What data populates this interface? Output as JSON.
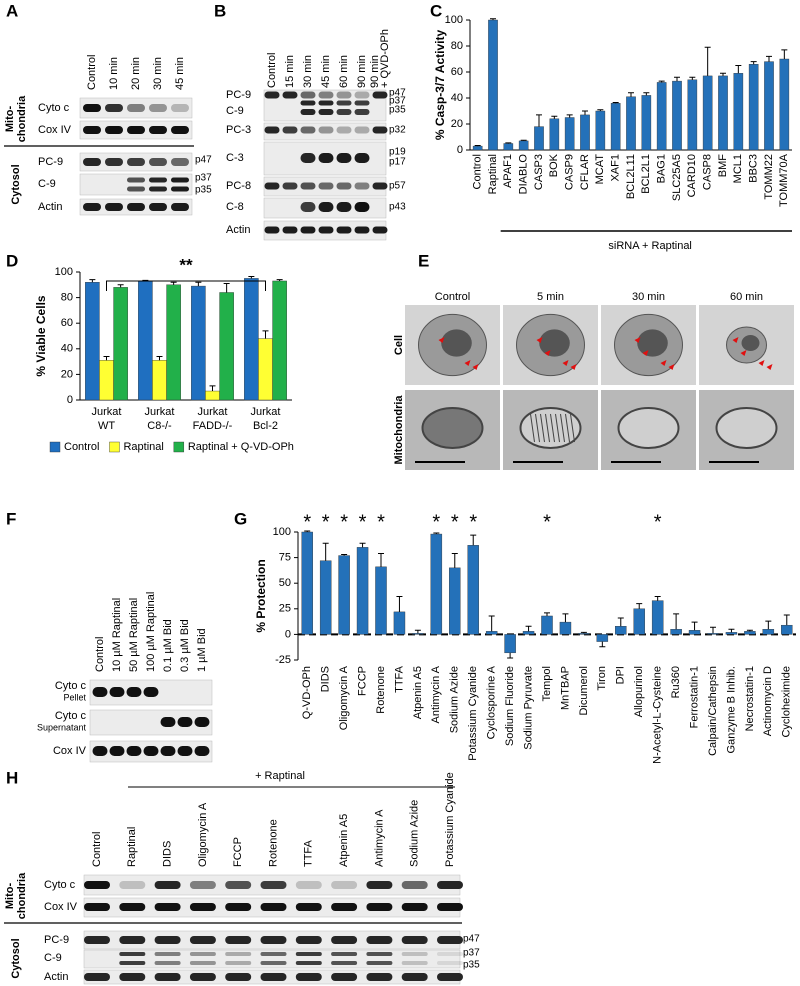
{
  "blot_A": {
    "letter": "A",
    "lanes": [
      "Control",
      "10 min",
      "20 min",
      "30 min",
      "45 min"
    ],
    "groups": [
      {
        "name": [
          "Mito-",
          "chondria"
        ],
        "rows": [
          "Cyto c",
          "Cox IV"
        ]
      },
      {
        "name": [
          "Cytosol"
        ],
        "rows": [
          "PC-9",
          "C-9",
          "Actin"
        ]
      }
    ],
    "bands": [
      "p47",
      "p37",
      "p35"
    ]
  },
  "blot_B": {
    "letter": "B",
    "lanes": [
      [
        "Control"
      ],
      [
        "15 min"
      ],
      [
        "30 min"
      ],
      [
        "45 min"
      ],
      [
        "60 min"
      ],
      [
        "90 min"
      ],
      [
        "90 min",
        "+ QVD-OPh"
      ]
    ],
    "rows": [
      "PC-9",
      "C-9",
      "PC-3",
      "C-3",
      "PC-8",
      "C-8",
      "Actin"
    ],
    "bands": [
      "p47",
      "p37",
      "p35",
      "p32",
      "p19",
      "p17",
      "p57",
      "p43"
    ]
  },
  "micrographs_E": {
    "letter": "E",
    "columns": [
      "Control",
      "5 min",
      "30 min",
      "60 min"
    ],
    "rows": [
      "Cell",
      "Mitochondria"
    ]
  },
  "blot_F": {
    "letter": "F",
    "lanes": [
      "Control",
      "10 µM Raptinal",
      "50 µM Raptinal",
      "100 µM Raptinal",
      "0.1 µM Bid",
      "0.3 µM Bid",
      "1 µM Bid"
    ],
    "rows": [
      [
        "Cyto c",
        "Pellet"
      ],
      [
        "Cyto c",
        "Supernatant"
      ],
      [
        "Cox IV"
      ]
    ]
  },
  "blot_H": {
    "letter": "H",
    "treatment": "+ Raptinal",
    "lanes": [
      "Control",
      "Raptinal",
      "DIDS",
      "Oligomycin A",
      "FCCP",
      "Rotenone",
      "TTFA",
      "Atpenin A5",
      "Antimycin A",
      "Sodium Azide",
      "Potassium Cyanide"
    ],
    "groups": [
      {
        "name": [
          "Mito-",
          "chondria"
        ],
        "rows": [
          "Cyto c",
          "Cox IV"
        ]
      },
      {
        "name": [
          "Cytosol"
        ],
        "rows": [
          "PC-9",
          "C-9",
          "Actin"
        ]
      }
    ],
    "bands": [
      "p47",
      "p37",
      "p35"
    ]
  },
  "chart_data": [
    {
      "letter": "C",
      "type": "bar",
      "ylabel": "% Casp-3/7 Activity",
      "categories": [
        "Control",
        "Raptinal",
        "APAF1",
        "DIABLO",
        "CASP3",
        "BOK",
        "CASP9",
        "CFLAR",
        "MCAT",
        "XAF1",
        "BCL2L11",
        "BCL2L1",
        "BAG1",
        "SLC25A5",
        "CARD10",
        "CASP8",
        "BMF",
        "MCL1",
        "BBC3",
        "TOMM22",
        "TOMM70A"
      ],
      "values": [
        3,
        100,
        5,
        7,
        18,
        24,
        25,
        27,
        30,
        36,
        41,
        42,
        52,
        53,
        54,
        57,
        57,
        59,
        66,
        68,
        70
      ],
      "errors": [
        0.5,
        1,
        0.5,
        0.5,
        9,
        2,
        2,
        3,
        1,
        0.5,
        3,
        2,
        1,
        3,
        2,
        22,
        2,
        6,
        2,
        4,
        7
      ],
      "color": "#2471b9",
      "ylim": [
        0,
        100
      ],
      "yticks": [
        0,
        20,
        40,
        60,
        80,
        100
      ],
      "annotation": "siRNA + Raptinal"
    },
    {
      "letter": "D",
      "type": "bar",
      "ylabel": "% Viable Cells",
      "categories": [
        [
          "Jurkat",
          "WT"
        ],
        [
          "Jurkat",
          "C8-/-"
        ],
        [
          "Jurkat",
          "FADD-/-"
        ],
        [
          "Jurkat",
          "Bcl-2"
        ]
      ],
      "series": [
        {
          "name": "Control",
          "color": "#1f6fc0",
          "values": [
            92,
            93,
            89,
            95
          ],
          "errors": [
            2,
            0.5,
            3,
            1.5
          ]
        },
        {
          "name": "Raptinal",
          "color": "#ffff33",
          "values": [
            31,
            31,
            7,
            48
          ],
          "errors": [
            3,
            3,
            4,
            6
          ]
        },
        {
          "name": "Raptinal + Q-VD-OPh",
          "color": "#22b04a",
          "values": [
            88,
            90,
            84,
            93
          ],
          "errors": [
            2,
            2,
            7,
            1
          ]
        }
      ],
      "ylim": [
        0,
        100
      ],
      "yticks": [
        0,
        20,
        40,
        60,
        80,
        100
      ],
      "legend": "bottom",
      "annotation": "**"
    },
    {
      "letter": "G",
      "type": "bar",
      "ylabel": "% Protection",
      "categories": [
        "Q-VD-OPh",
        "DIDS",
        "Oligomycin A",
        "FCCP",
        "Rotenone",
        "TTFA",
        "Atpenin A5",
        "Antimycin A",
        "Sodium Azide",
        "Potassium Cyanide",
        "Cyclosporine A",
        "Sodium Fluoride",
        "Sodium Pyruvate",
        "Tempol",
        "MnTBAP",
        "Dicumerol",
        "Tiron",
        "DPI",
        "Allopurinol",
        "N-Acetyl-L-Cysteine",
        "Ru360",
        "Ferrostatin-1",
        "Calpain/Cathepsin",
        "Ganzyme B Inhib.",
        "Necrostatin-1",
        "Actinomycin D",
        "Cycloheximide"
      ],
      "values": [
        100,
        72,
        77,
        85,
        66,
        22,
        1,
        98,
        65,
        87,
        3,
        -18,
        3,
        18,
        12,
        1,
        -7,
        8,
        25,
        33,
        5,
        4,
        1,
        2,
        3,
        5,
        9
      ],
      "errors": [
        1,
        17,
        1,
        4,
        13,
        15,
        3,
        1,
        14,
        10,
        15,
        5,
        5,
        3,
        8,
        1,
        5,
        8,
        5,
        4,
        15,
        8,
        6,
        3,
        1,
        8,
        10
      ],
      "markers": [
        "*",
        "*",
        "*",
        "*",
        "*",
        null,
        null,
        "*",
        "*",
        "*",
        null,
        null,
        null,
        "*",
        null,
        null,
        null,
        null,
        null,
        "*",
        null,
        null,
        null,
        null,
        null,
        null,
        null
      ],
      "color": "#2471b9",
      "ylim": [
        -25,
        100
      ],
      "yticks": [
        -25,
        0,
        25,
        50,
        75,
        100
      ]
    }
  ]
}
